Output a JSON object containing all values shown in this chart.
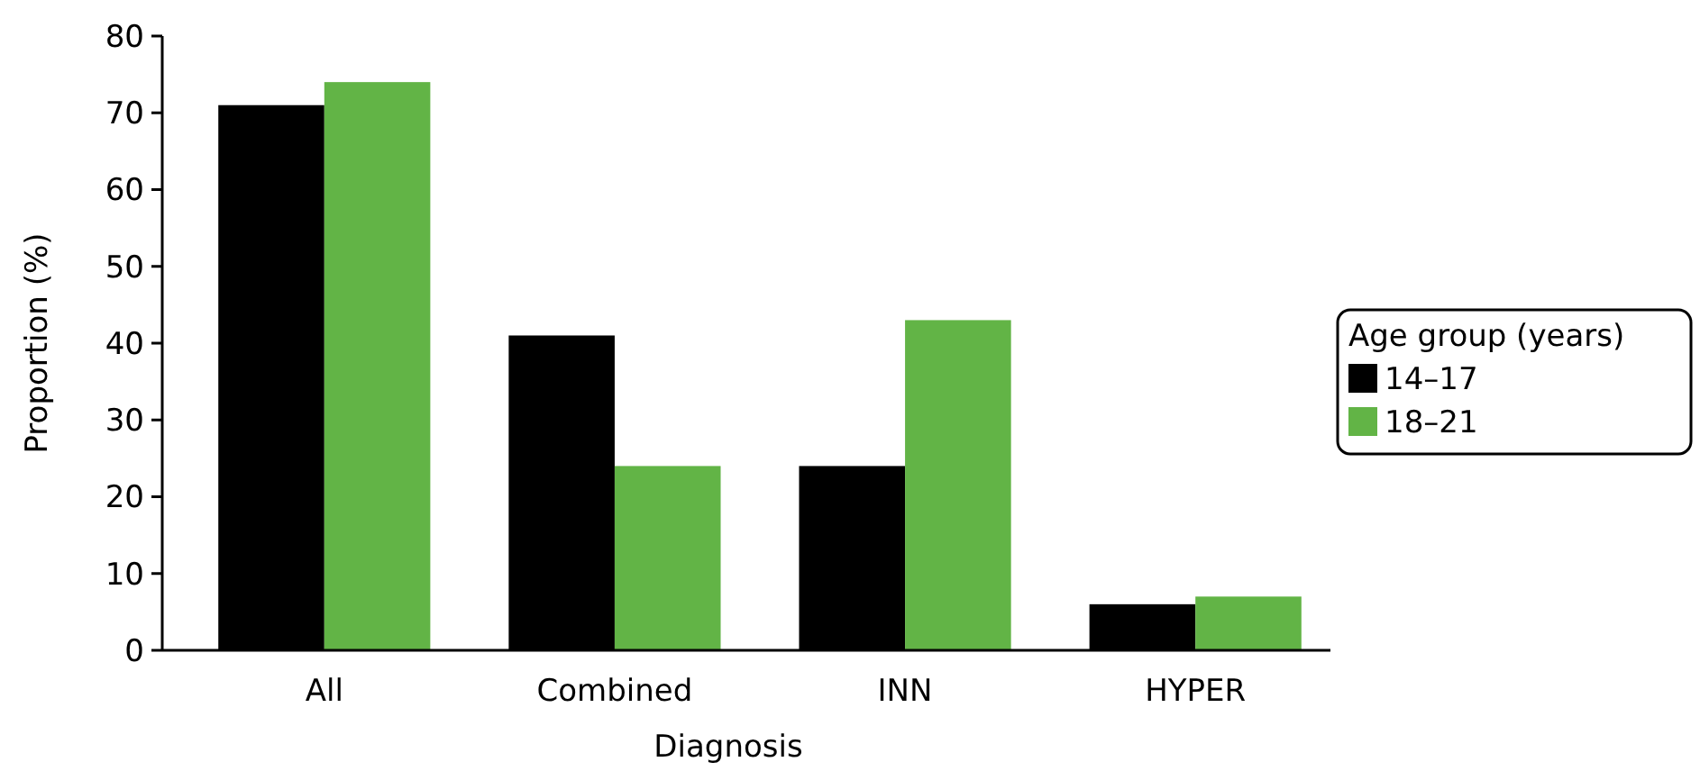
{
  "chart_data": {
    "type": "bar",
    "xlabel": "Diagnosis",
    "ylabel": "Proportion (%)",
    "legend_title": "Age group (years)",
    "categories": [
      "All",
      "Combined",
      "INN",
      "HYPER"
    ],
    "series": [
      {
        "name": "14–17",
        "color": "#000000",
        "values": [
          71,
          41,
          24,
          6
        ]
      },
      {
        "name": "18–21",
        "color": "#62b446",
        "values": [
          74,
          24,
          43,
          7
        ]
      }
    ],
    "ylim": [
      0,
      80
    ],
    "yticks": [
      0,
      10,
      20,
      30,
      40,
      50,
      60,
      70,
      80
    ],
    "grid": false,
    "legend": "right"
  }
}
